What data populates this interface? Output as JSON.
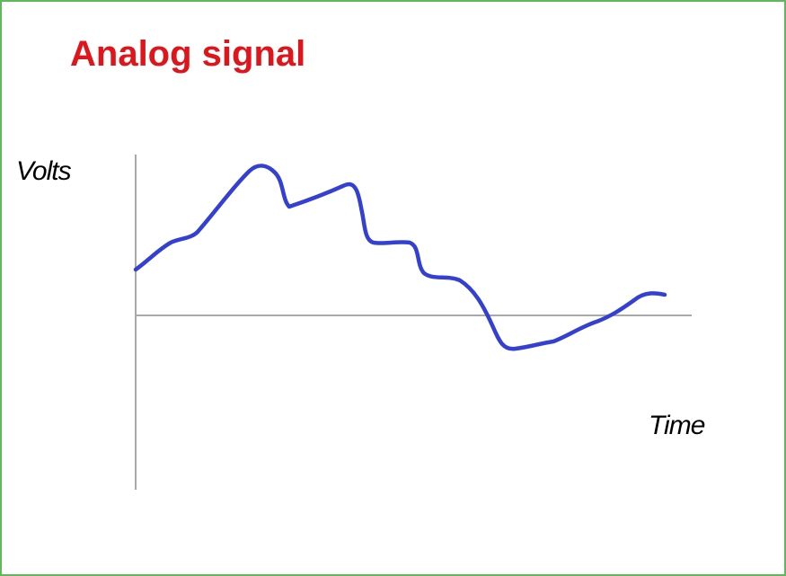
{
  "title": "Analog signal",
  "labels": {
    "y_axis": "Volts",
    "x_axis": "Time"
  },
  "colors": {
    "frame": "#5fb85a",
    "title": "#e0141b",
    "signal": "#3440d4",
    "axis": "#a9a9a9"
  }
}
